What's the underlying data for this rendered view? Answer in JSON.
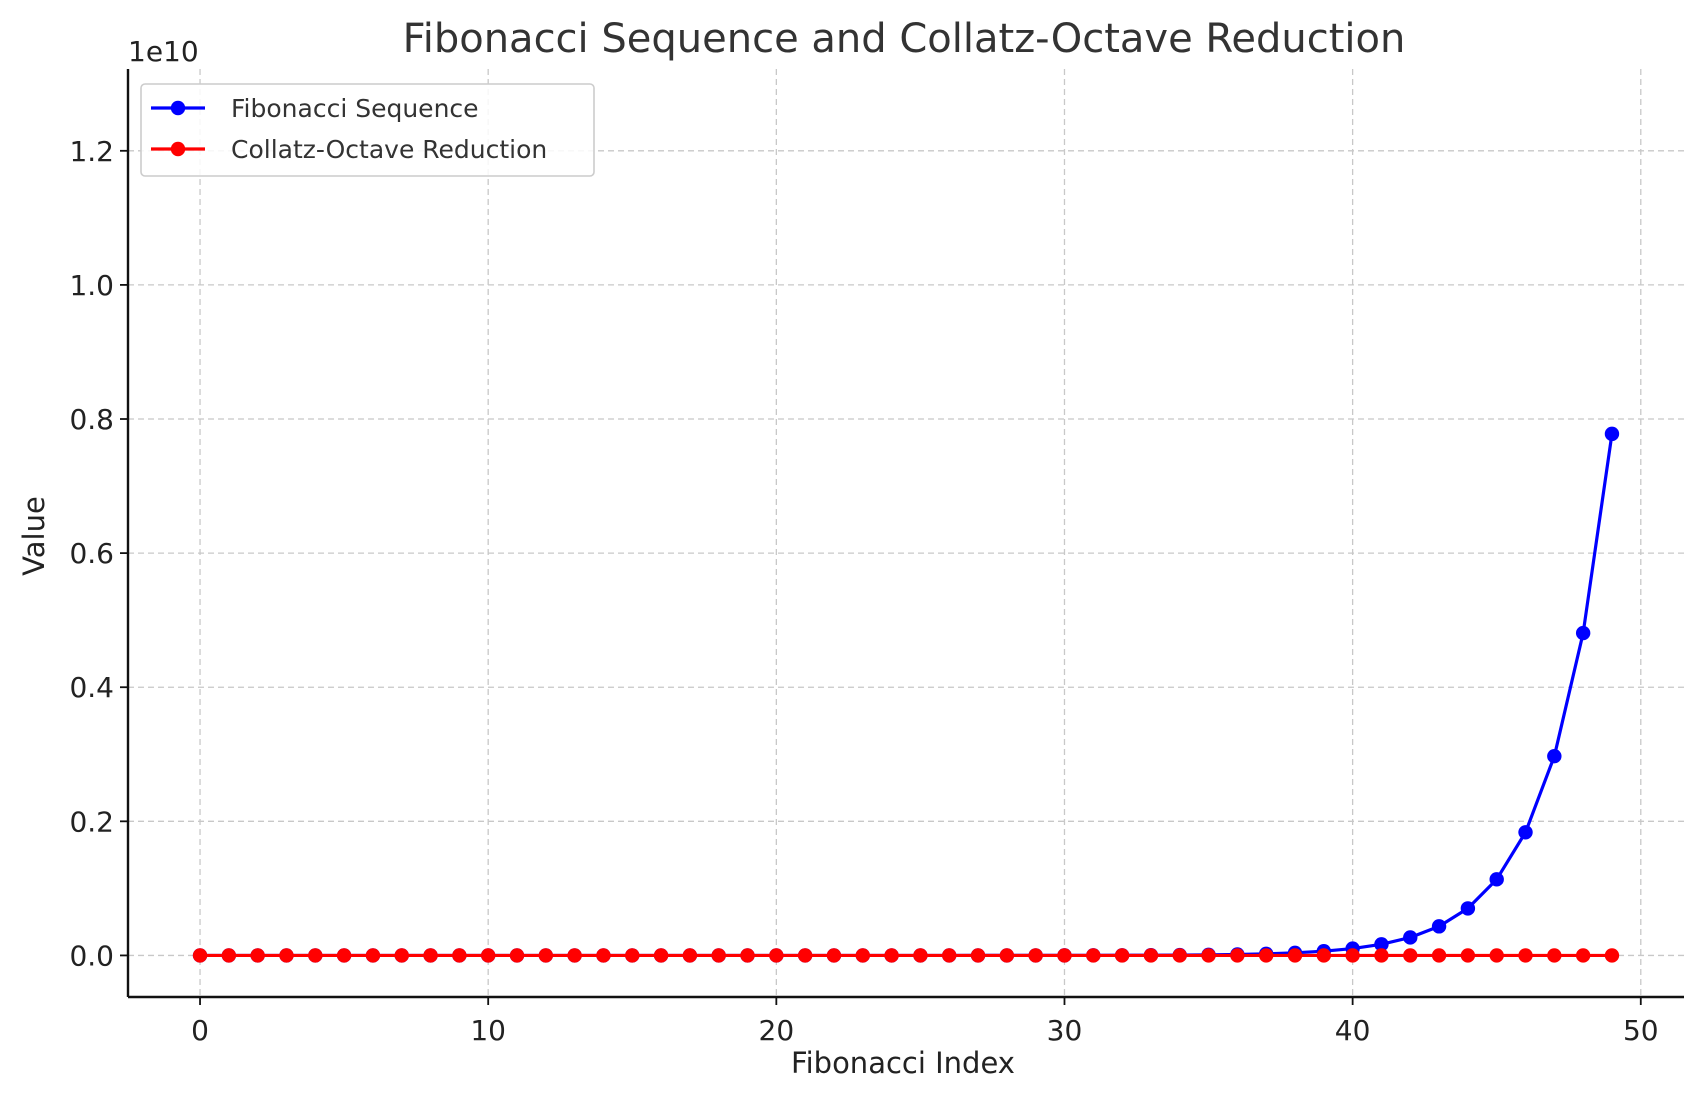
{
  "chart_data": {
    "type": "line",
    "title": "Fibonacci Sequence and Collatz-Octave Reduction",
    "xlabel": "Fibonacci Index",
    "ylabel": "Value",
    "y_multiplier_label": "1e10",
    "y_multiplier": 10000000000,
    "xlim": [
      -2.5,
      51.5
    ],
    "ylim": [
      -0.062,
      1.322
    ],
    "x_ticks": [
      0,
      10,
      20,
      30,
      40,
      50
    ],
    "x_tick_labels": [
      "0",
      "10",
      "20",
      "30",
      "40",
      "50"
    ],
    "y_ticks": [
      0.0,
      0.2,
      0.4,
      0.6,
      0.8,
      1.0,
      1.2
    ],
    "y_tick_labels": [
      "0.0",
      "0.2",
      "0.4",
      "0.6",
      "0.8",
      "1.0",
      "1.2"
    ],
    "grid": true,
    "legend_position": "top-left",
    "x": [
      0,
      1,
      2,
      3,
      4,
      5,
      6,
      7,
      8,
      9,
      10,
      11,
      12,
      13,
      14,
      15,
      16,
      17,
      18,
      19,
      20,
      21,
      22,
      23,
      24,
      25,
      26,
      27,
      28,
      29,
      30,
      31,
      32,
      33,
      34,
      35,
      36,
      37,
      38,
      39,
      40,
      41,
      42,
      43,
      44,
      45,
      46,
      47,
      48,
      49
    ],
    "series": [
      {
        "name": "Fibonacci Sequence",
        "color": "#0000ff",
        "marker": "circle",
        "values": [
          0,
          1,
          1,
          2,
          3,
          5,
          8,
          13,
          21,
          34,
          55,
          89,
          144,
          233,
          377,
          610,
          987,
          1597,
          2584,
          4181,
          6765,
          10946,
          17711,
          28657,
          46368,
          75025,
          121393,
          196418,
          317811,
          514229,
          832040,
          1346269,
          2178309,
          3524578,
          5702887,
          9227465,
          14930352,
          24157817,
          39088169,
          63245986,
          102334155,
          165580141,
          267914296,
          433494437,
          701408733,
          1134903170,
          1836311903,
          2971215073,
          4807526976,
          7778742049
        ]
      },
      {
        "name": "Collatz-Octave Reduction",
        "color": "#ff0000",
        "marker": "circle",
        "values": [
          0,
          1,
          1,
          1,
          1,
          1,
          1,
          1,
          1,
          1,
          1,
          1,
          1,
          1,
          1,
          1,
          1,
          1,
          1,
          1,
          1,
          1,
          1,
          1,
          1,
          1,
          1,
          1,
          1,
          1,
          1,
          1,
          1,
          1,
          1,
          1,
          1,
          1,
          1,
          1,
          1,
          1,
          1,
          1,
          1,
          1,
          1,
          1,
          1,
          1
        ]
      }
    ]
  }
}
